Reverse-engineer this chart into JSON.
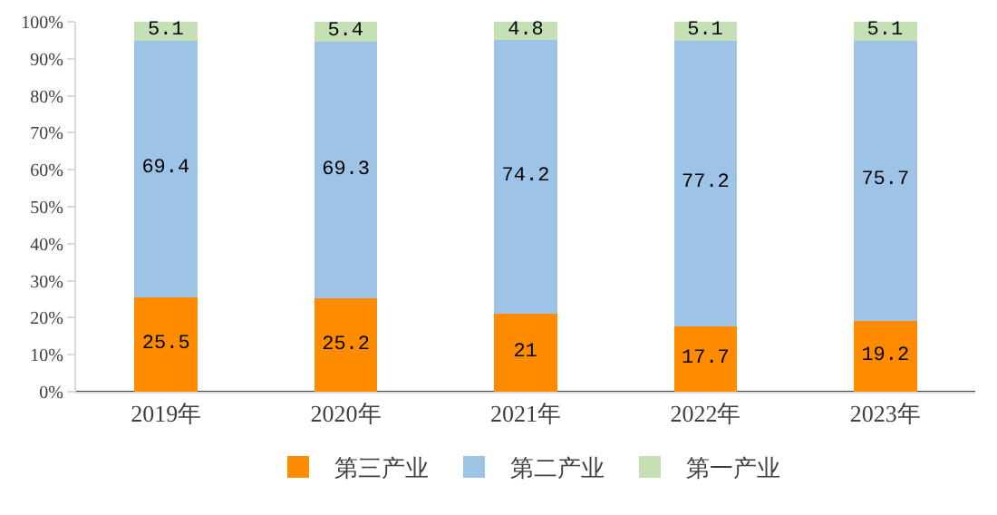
{
  "chart_data": {
    "type": "bar",
    "stacked": true,
    "categories": [
      "2019年",
      "2020年",
      "2021年",
      "2022年",
      "2023年"
    ],
    "series": [
      {
        "name": "第三产业",
        "color": "#ff8c00",
        "values": [
          25.5,
          25.2,
          21,
          17.7,
          19.2
        ]
      },
      {
        "name": "第二产业",
        "color": "#9dc3e6",
        "values": [
          69.4,
          69.3,
          74.2,
          77.2,
          75.7
        ]
      },
      {
        "name": "第一产业",
        "color": "#c5e0b4",
        "values": [
          5.1,
          5.4,
          4.8,
          5.1,
          5.1
        ]
      }
    ],
    "ylim": [
      0,
      100
    ],
    "yticks": [
      {
        "value": 0,
        "label": "0%"
      },
      {
        "value": 10,
        "label": "10%"
      },
      {
        "value": 20,
        "label": "20%"
      },
      {
        "value": 30,
        "label": "30%"
      },
      {
        "value": 40,
        "label": "40%"
      },
      {
        "value": 50,
        "label": "50%"
      },
      {
        "value": 60,
        "label": "60%"
      },
      {
        "value": 70,
        "label": "70%"
      },
      {
        "value": 80,
        "label": "80%"
      },
      {
        "value": 90,
        "label": "90%"
      },
      {
        "value": 100,
        "label": "100%"
      }
    ],
    "grid": false,
    "legend": "bottom",
    "data_labels": true
  }
}
